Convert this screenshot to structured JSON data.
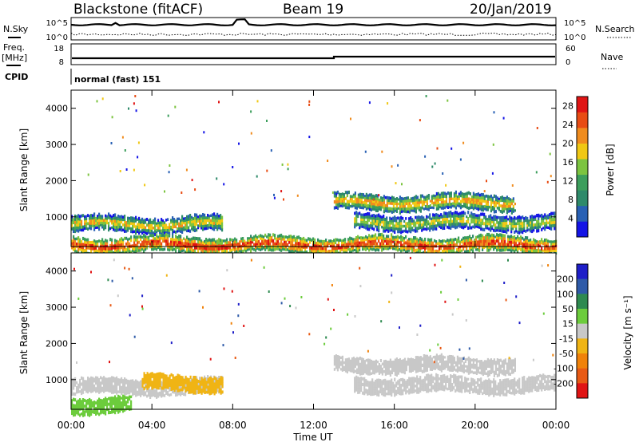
{
  "header": {
    "station": "Blackstone (fitACF)",
    "beam": "Beam 19",
    "date": "20/Jan/2019"
  },
  "top_panels": {
    "nsky_label": "N.Sky",
    "nsearch_label": "N.Search",
    "noise_tick_high": "10^5",
    "noise_tick_low": "10^0",
    "freq_label": "Freq.",
    "freq_unit": "[MHz]",
    "freq_ticks": [
      "18",
      "8"
    ],
    "nave_label": "Nave",
    "nave_ticks": [
      "60",
      "0"
    ],
    "cpid_label": "CPID",
    "cpid_value": "normal (fast) 151"
  },
  "chart_data": [
    {
      "type": "heatmap",
      "title": "",
      "xlabel": "Time UT",
      "ylabel": "Slant Range [km]",
      "x_ticks": [
        "00:00",
        "04:00",
        "08:00",
        "12:00",
        "16:00",
        "20:00",
        "00:00"
      ],
      "y_ticks": [
        1000,
        2000,
        3000,
        4000
      ],
      "ylim": [
        180,
        4500
      ],
      "colorbar": {
        "label": "Power [dB]",
        "ticks": [
          4,
          8,
          12,
          16,
          20,
          24,
          28
        ],
        "range": [
          0,
          30
        ]
      },
      "features": [
        {
          "start_ut": 0.0,
          "end_ut": 7.5,
          "range_km": 800,
          "value_db": 22
        },
        {
          "start_ut": 13.0,
          "end_ut": 22.0,
          "range_km": 1400,
          "value_db": 24
        },
        {
          "start_ut": 14.0,
          "end_ut": 24.0,
          "range_km": 850,
          "value_db": 20
        },
        {
          "start_ut": 0.0,
          "end_ut": 24.0,
          "range_km": 230,
          "value_db": 30
        }
      ]
    },
    {
      "type": "heatmap",
      "title": "",
      "xlabel": "Time UT",
      "ylabel": "Slant Range [km]",
      "x_ticks": [
        "00:00",
        "04:00",
        "08:00",
        "12:00",
        "16:00",
        "20:00",
        "00:00"
      ],
      "y_ticks": [
        1000,
        2000,
        3000,
        4000
      ],
      "ylim": [
        180,
        4500
      ],
      "colorbar": {
        "label": "Velocity [m s⁻¹]",
        "tick_labels": [
          "200",
          "100",
          "50",
          "15",
          "-15",
          "-50",
          "-100",
          "-200"
        ]
      },
      "features": [
        {
          "start_ut": 0.0,
          "end_ut": 7.5,
          "range_km": 800,
          "value_ms": 0
        },
        {
          "start_ut": 3.5,
          "end_ut": 7.5,
          "range_km": 900,
          "value_ms": -40
        },
        {
          "start_ut": 13.0,
          "end_ut": 22.0,
          "range_km": 1400,
          "value_ms": 0
        },
        {
          "start_ut": 14.0,
          "end_ut": 24.0,
          "range_km": 850,
          "value_ms": 0
        },
        {
          "start_ut": 0.0,
          "end_ut": 3.0,
          "range_km": 300,
          "value_ms": 40
        }
      ]
    }
  ],
  "colors": {
    "power_scale": [
      "#1414e6",
      "#2860b4",
      "#2e8a6a",
      "#3c9e5c",
      "#7cc440",
      "#f0c814",
      "#f08c1e",
      "#e84c14",
      "#e01414"
    ],
    "velocity_scale": [
      "#1e1ec8",
      "#2e5aa8",
      "#2e8a50",
      "#6ccc3c",
      "#c8c8c8",
      "#f0b414",
      "#f0820a",
      "#e85a14",
      "#e01414"
    ]
  }
}
